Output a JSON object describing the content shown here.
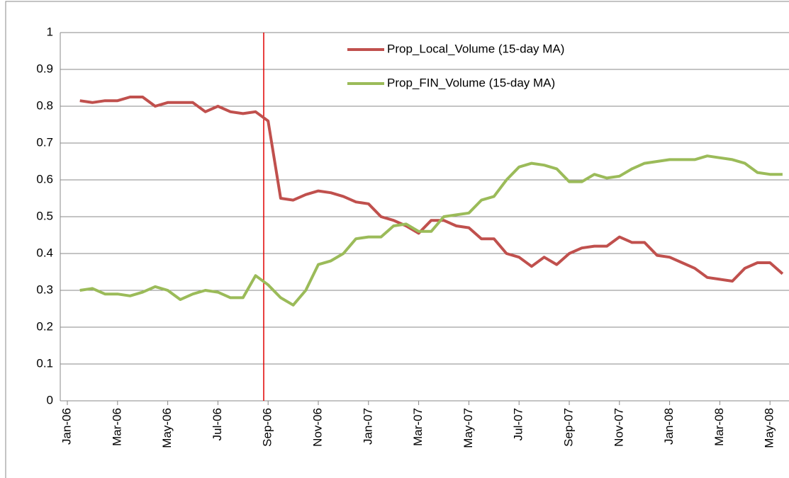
{
  "chart_data": {
    "type": "line",
    "categories": [
      "Jan-06",
      null,
      null,
      null,
      "Mar-06",
      null,
      null,
      null,
      "May-06",
      null,
      null,
      null,
      "Jul-06",
      null,
      null,
      null,
      "Sep-06",
      null,
      null,
      null,
      "Nov-06",
      null,
      null,
      null,
      "Jan-07",
      null,
      null,
      null,
      "Mar-07",
      null,
      null,
      null,
      "May-07",
      null,
      null,
      null,
      "Jul-07",
      null,
      null,
      null,
      "Sep-07",
      null,
      null,
      null,
      "Nov-07",
      null,
      null,
      null,
      "Jan-08",
      null,
      null,
      null,
      "Mar-08",
      null,
      null,
      null,
      "May-08",
      null
    ],
    "series": [
      {
        "name": "Prop_Local_Volume  (15-day MA)",
        "color": "#c0504d",
        "values": [
          null,
          0.815,
          0.81,
          0.815,
          0.815,
          0.825,
          0.825,
          0.8,
          0.81,
          0.81,
          0.81,
          0.785,
          0.8,
          0.785,
          0.78,
          0.785,
          0.76,
          0.55,
          0.545,
          0.56,
          0.57,
          0.565,
          0.555,
          0.54,
          0.535,
          0.5,
          0.49,
          0.475,
          0.455,
          0.49,
          0.49,
          0.475,
          0.47,
          0.44,
          0.44,
          0.4,
          0.39,
          0.365,
          0.39,
          0.37,
          0.4,
          0.415,
          0.42,
          0.42,
          0.445,
          0.43,
          0.43,
          0.395,
          0.39,
          0.375,
          0.36,
          0.335,
          0.33,
          0.325,
          0.36,
          0.375,
          0.375,
          0.345
        ]
      },
      {
        "name": "Prop_FIN_Volume (15-day MA)",
        "color": "#9bbb59",
        "values": [
          null,
          0.3,
          0.305,
          0.29,
          0.29,
          0.285,
          0.295,
          0.31,
          0.3,
          0.275,
          0.29,
          0.3,
          0.295,
          0.28,
          0.28,
          0.34,
          0.315,
          0.28,
          0.26,
          0.3,
          0.37,
          0.38,
          0.4,
          0.44,
          0.445,
          0.445,
          0.475,
          0.48,
          0.46,
          0.46,
          0.5,
          0.505,
          0.51,
          0.545,
          0.555,
          0.6,
          0.635,
          0.645,
          0.64,
          0.63,
          0.595,
          0.595,
          0.615,
          0.605,
          0.61,
          0.63,
          0.645,
          0.65,
          0.655,
          0.655,
          0.655,
          0.665,
          0.66,
          0.655,
          0.645,
          0.62,
          0.615,
          0.615
        ]
      }
    ],
    "ylim": [
      0,
      1
    ],
    "yticks": [
      0,
      0.1,
      0.2,
      0.3,
      0.4,
      0.5,
      0.6,
      0.7,
      0.8,
      0.9,
      1
    ],
    "grid": true
  }
}
